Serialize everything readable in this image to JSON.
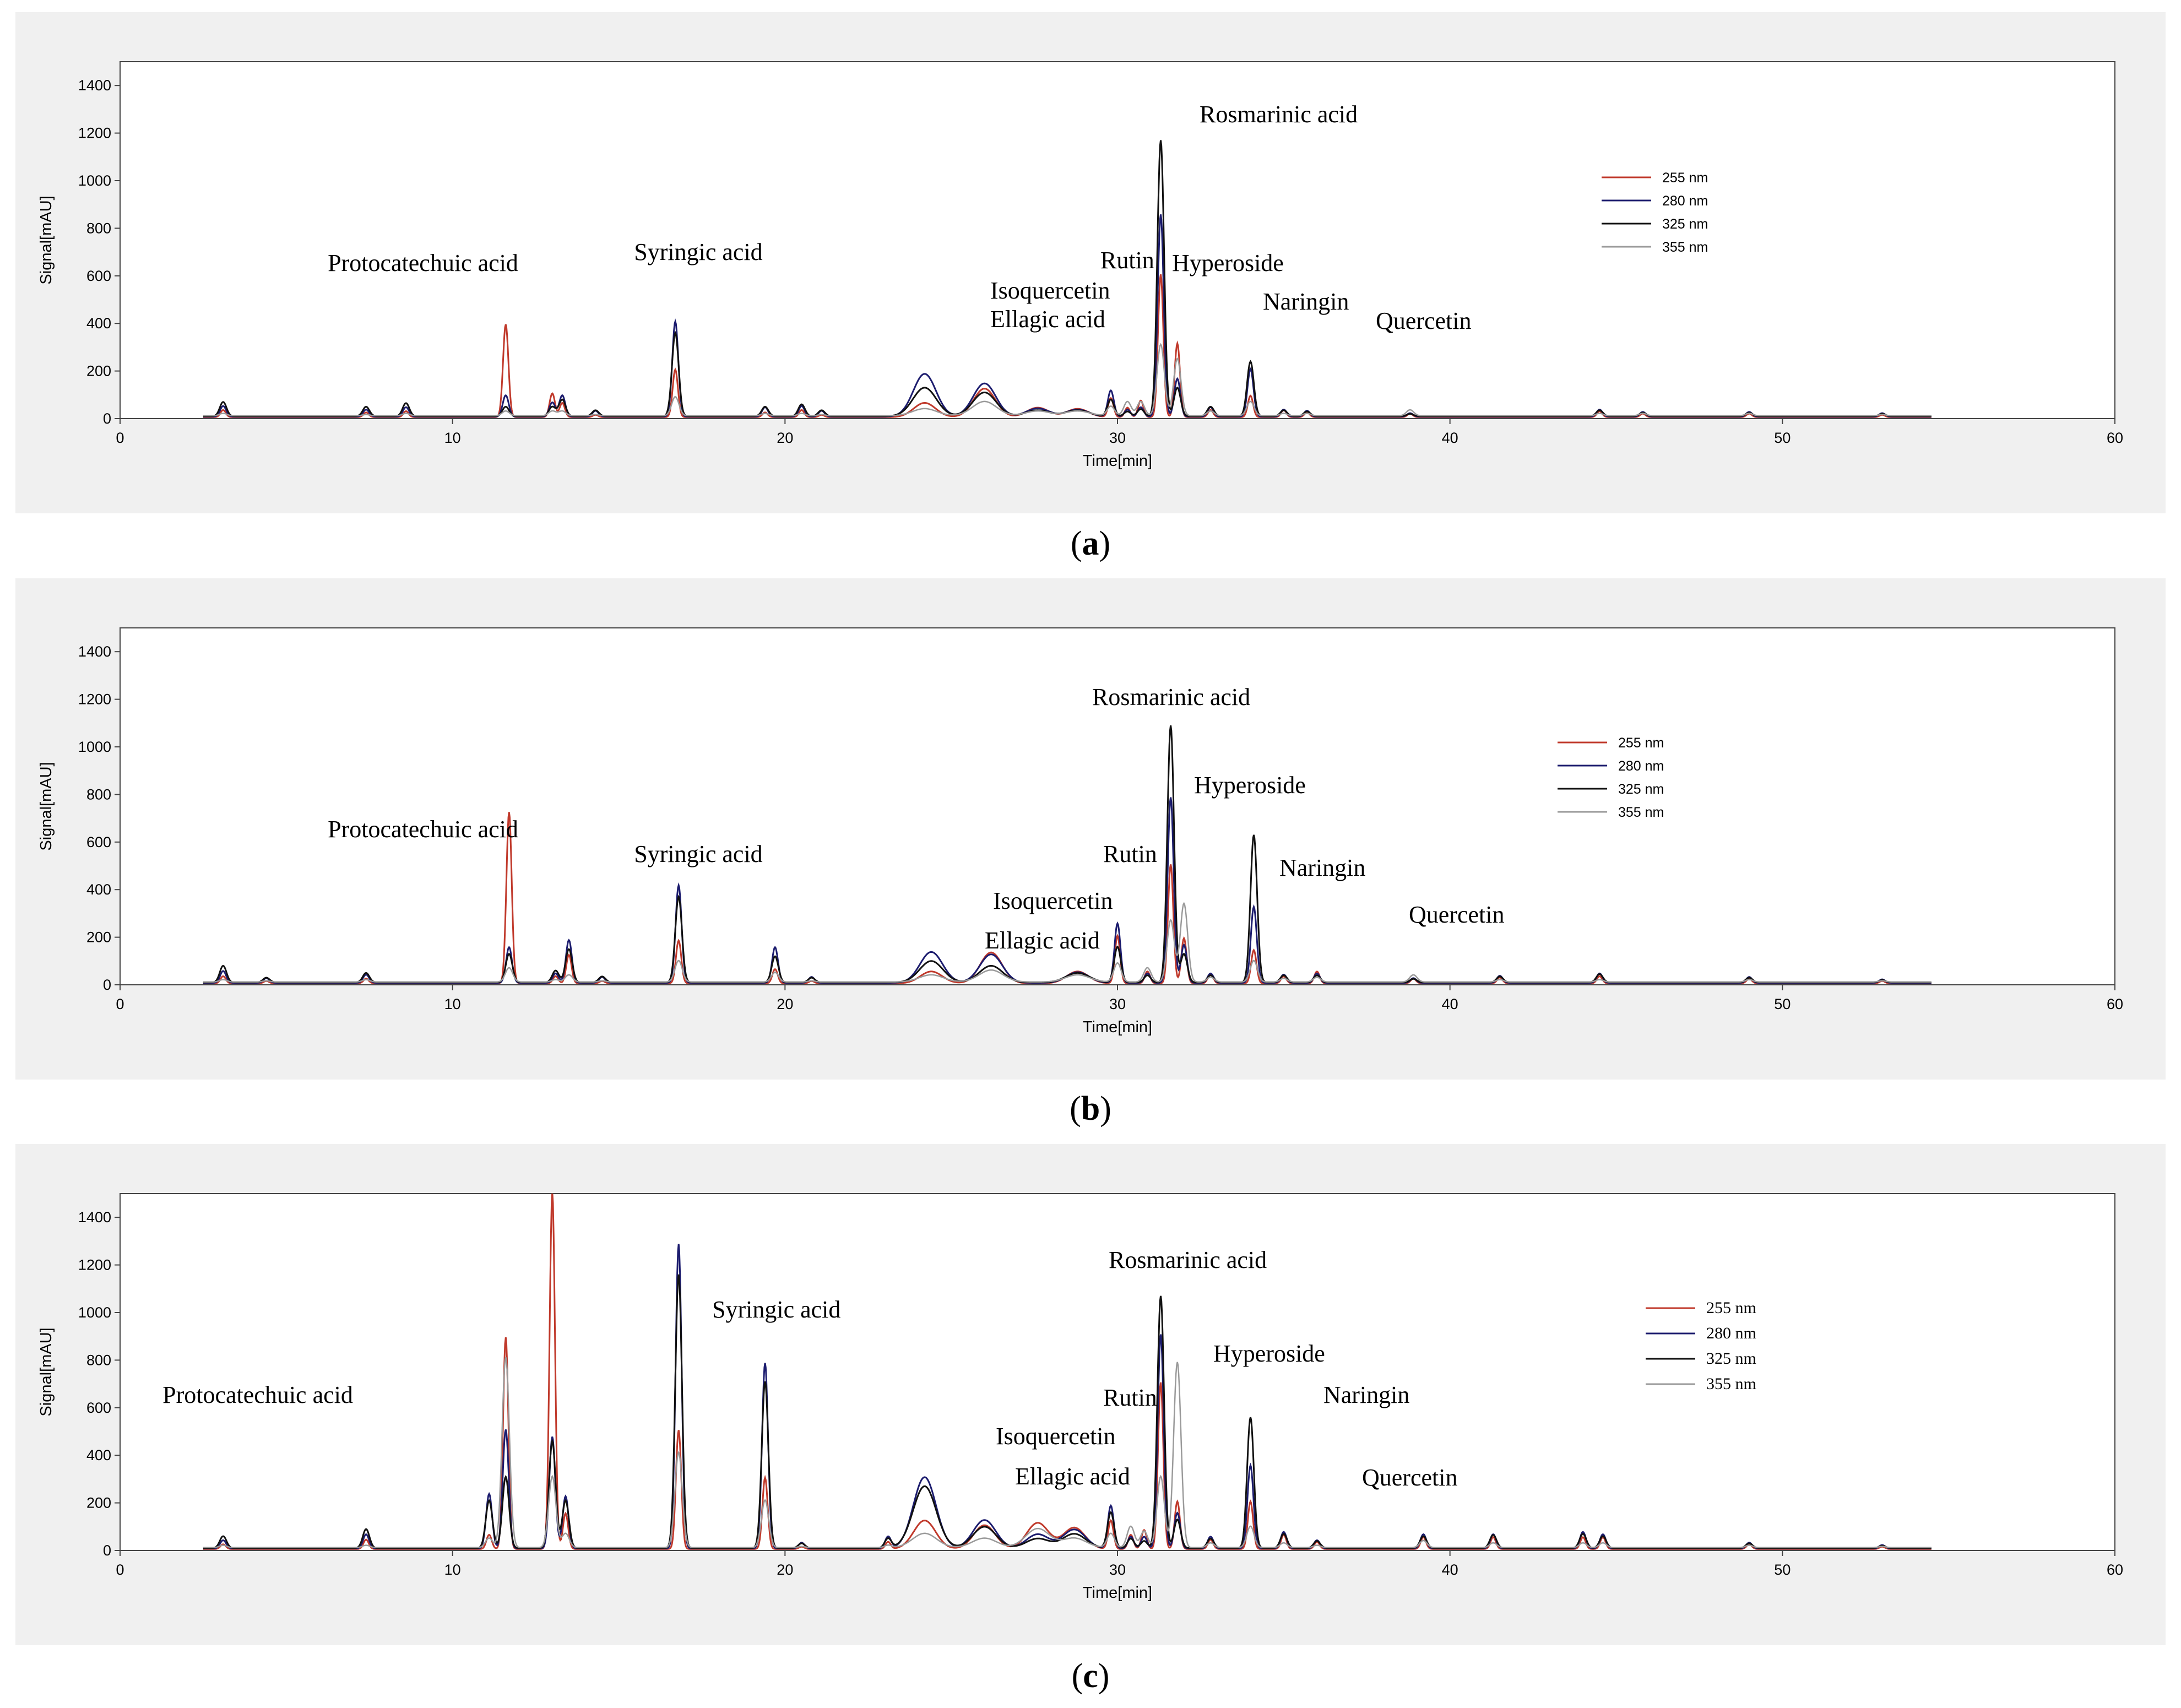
{
  "chart_data": [
    {
      "type": "line",
      "panel_label": "a",
      "xlabel": "Time[min]",
      "ylabel": "Signal[mAU]",
      "xlim": [
        0,
        60
      ],
      "ylim": [
        0,
        1500
      ],
      "xticks": [
        0,
        10,
        20,
        30,
        40,
        50,
        60
      ],
      "yticks": [
        0,
        200,
        400,
        600,
        800,
        1000,
        1200,
        1400
      ],
      "legend": {
        "position": "top-right",
        "entries": [
          "255 nm",
          "280 nm",
          "325 nm",
          "355 nm"
        ]
      },
      "colors": {
        "255 nm": "#c0392b",
        "280 nm": "#1c1c6e",
        "325 nm": "#111111",
        "355 nm": "#9a9a9a"
      },
      "annotations": [
        {
          "text": "Protocatechuic acid",
          "x": 11.6
        },
        {
          "text": "Syringic acid",
          "x": 16.7
        },
        {
          "text": "Isoquercetin",
          "x": 30.3
        },
        {
          "text": "Ellagic acid",
          "x": 29.8
        },
        {
          "text": "Rutin",
          "x": 30.7
        },
        {
          "text": "Hyperoside",
          "x": 31.8
        },
        {
          "text": "Rosmarinic acid",
          "x": 31.3
        },
        {
          "text": "Naringin",
          "x": 34.0
        },
        {
          "text": "Quercetin",
          "x": 38.8
        }
      ],
      "peaks": [
        {
          "x": 3.1,
          "values": [
            30,
            45,
            60,
            10
          ]
        },
        {
          "x": 7.4,
          "values": [
            20,
            30,
            40,
            5
          ]
        },
        {
          "x": 8.6,
          "values": [
            25,
            40,
            55,
            10
          ]
        },
        {
          "x": 11.6,
          "values": [
            390,
            90,
            40,
            20
          ]
        },
        {
          "x": 13.0,
          "values": [
            100,
            60,
            40,
            20
          ]
        },
        {
          "x": 13.3,
          "values": [
            60,
            90,
            70,
            20
          ]
        },
        {
          "x": 14.3,
          "values": [
            10,
            25,
            25,
            5
          ]
        },
        {
          "x": 16.7,
          "values": [
            200,
            400,
            350,
            80
          ]
        },
        {
          "x": 19.4,
          "values": [
            20,
            40,
            40,
            10
          ]
        },
        {
          "x": 20.5,
          "values": [
            30,
            45,
            50,
            10
          ]
        },
        {
          "x": 21.1,
          "values": [
            10,
            25,
            25,
            5
          ]
        },
        {
          "x": 24.2,
          "values": [
            60,
            180,
            120,
            30
          ]
        },
        {
          "x": 26.0,
          "values": [
            120,
            140,
            100,
            60
          ]
        },
        {
          "x": 27.6,
          "values": [
            40,
            35,
            25,
            20
          ]
        },
        {
          "x": 28.8,
          "values": [
            35,
            30,
            25,
            20
          ]
        },
        {
          "x": 29.8,
          "values": [
            80,
            110,
            70,
            40
          ]
        },
        {
          "x": 30.3,
          "values": [
            40,
            30,
            20,
            60
          ]
        },
        {
          "x": 30.7,
          "values": [
            70,
            40,
            30,
            60
          ]
        },
        {
          "x": 31.3,
          "values": [
            600,
            850,
            1160,
            300
          ]
        },
        {
          "x": 31.8,
          "values": [
            310,
            160,
            120,
            240
          ]
        },
        {
          "x": 32.8,
          "values": [
            30,
            40,
            40,
            20
          ]
        },
        {
          "x": 34.0,
          "values": [
            90,
            200,
            230,
            60
          ]
        },
        {
          "x": 35.0,
          "values": [
            30,
            30,
            25,
            10
          ]
        },
        {
          "x": 35.7,
          "values": [
            20,
            25,
            20,
            10
          ]
        },
        {
          "x": 38.8,
          "values": [
            15,
            15,
            10,
            25
          ]
        },
        {
          "x": 44.5,
          "values": [
            25,
            30,
            25,
            10
          ]
        },
        {
          "x": 45.8,
          "values": [
            15,
            20,
            15,
            10
          ]
        },
        {
          "x": 49.0,
          "values": [
            15,
            20,
            15,
            10
          ]
        },
        {
          "x": 53.0,
          "values": [
            10,
            15,
            10,
            5
          ]
        }
      ]
    },
    {
      "type": "line",
      "panel_label": "b",
      "xlabel": "Time[min]",
      "ylabel": "Signal[mAU]",
      "xlim": [
        0,
        60
      ],
      "ylim": [
        0,
        1500
      ],
      "xticks": [
        0,
        10,
        20,
        30,
        40,
        50,
        60
      ],
      "yticks": [
        0,
        200,
        400,
        600,
        800,
        1000,
        1200,
        1400
      ],
      "legend": {
        "position": "top-right",
        "entries": [
          "255 nm",
          "280 nm",
          "325 nm",
          "355 nm"
        ]
      },
      "colors": {
        "255 nm": "#c0392b",
        "280 nm": "#1c1c6e",
        "325 nm": "#111111",
        "355 nm": "#9a9a9a"
      },
      "annotations": [
        {
          "text": "Protocatechuic acid",
          "x": 11.7
        },
        {
          "text": "Syringic acid",
          "x": 16.8
        },
        {
          "text": "Isoquercetin",
          "x": 30.5
        },
        {
          "text": "Ellagic acid",
          "x": 30.0
        },
        {
          "text": "Rutin",
          "x": 30.9
        },
        {
          "text": "Rosmarinic acid",
          "x": 31.6
        },
        {
          "text": "Hyperoside",
          "x": 32.0
        },
        {
          "text": "Naringin",
          "x": 34.1
        },
        {
          "text": "Quercetin",
          "x": 38.9
        }
      ],
      "peaks": [
        {
          "x": 3.1,
          "values": [
            30,
            50,
            70,
            10
          ]
        },
        {
          "x": 4.4,
          "values": [
            10,
            20,
            20,
            5
          ]
        },
        {
          "x": 7.4,
          "values": [
            20,
            35,
            40,
            10
          ]
        },
        {
          "x": 11.7,
          "values": [
            720,
            150,
            120,
            60
          ]
        },
        {
          "x": 13.1,
          "values": [
            30,
            40,
            50,
            10
          ]
        },
        {
          "x": 13.5,
          "values": [
            120,
            180,
            140,
            30
          ]
        },
        {
          "x": 14.5,
          "values": [
            10,
            25,
            25,
            5
          ]
        },
        {
          "x": 16.8,
          "values": [
            180,
            410,
            360,
            90
          ]
        },
        {
          "x": 19.7,
          "values": [
            60,
            150,
            110,
            40
          ]
        },
        {
          "x": 20.8,
          "values": [
            10,
            25,
            20,
            5
          ]
        },
        {
          "x": 24.4,
          "values": [
            50,
            130,
            90,
            30
          ]
        },
        {
          "x": 26.2,
          "values": [
            130,
            120,
            70,
            50
          ]
        },
        {
          "x": 28.8,
          "values": [
            50,
            45,
            40,
            30
          ]
        },
        {
          "x": 30.0,
          "values": [
            200,
            250,
            150,
            80
          ]
        },
        {
          "x": 30.9,
          "values": [
            50,
            40,
            30,
            60
          ]
        },
        {
          "x": 31.6,
          "values": [
            500,
            780,
            1080,
            260
          ]
        },
        {
          "x": 32.0,
          "values": [
            190,
            160,
            120,
            330
          ]
        },
        {
          "x": 32.8,
          "values": [
            40,
            40,
            30,
            20
          ]
        },
        {
          "x": 34.1,
          "values": [
            140,
            320,
            620,
            90
          ]
        },
        {
          "x": 35.0,
          "values": [
            30,
            35,
            30,
            15
          ]
        },
        {
          "x": 36.0,
          "values": [
            50,
            40,
            30,
            20
          ]
        },
        {
          "x": 38.9,
          "values": [
            20,
            20,
            15,
            30
          ]
        },
        {
          "x": 41.5,
          "values": [
            25,
            30,
            25,
            10
          ]
        },
        {
          "x": 44.5,
          "values": [
            30,
            40,
            35,
            10
          ]
        },
        {
          "x": 49.0,
          "values": [
            20,
            25,
            20,
            10
          ]
        },
        {
          "x": 53.0,
          "values": [
            10,
            15,
            10,
            5
          ]
        }
      ]
    },
    {
      "type": "line",
      "panel_label": "c",
      "xlabel": "Time[min]",
      "ylabel": "Signal[mAU]",
      "xlim": [
        0,
        60
      ],
      "ylim": [
        0,
        1500
      ],
      "xticks": [
        0,
        10,
        20,
        30,
        40,
        50,
        60
      ],
      "yticks": [
        0,
        200,
        400,
        600,
        800,
        1000,
        1200,
        1400
      ],
      "legend": {
        "position": "top-right",
        "entries": [
          "255 nm",
          "280 nm",
          "325 nm",
          "355 nm"
        ]
      },
      "colors": {
        "255 nm": "#c0392b",
        "280 nm": "#1c1c6e",
        "325 nm": "#111111",
        "355 nm": "#9a9a9a"
      },
      "annotations": [
        {
          "text": "Protocatechuic acid",
          "x": 11.6
        },
        {
          "text": "Syringic acid",
          "x": 16.8
        },
        {
          "text": "Isoquercetin",
          "x": 30.4
        },
        {
          "text": "Ellagic acid",
          "x": 29.8
        },
        {
          "text": "Rutin",
          "x": 30.8
        },
        {
          "text": "Rosmarinic acid",
          "x": 31.3
        },
        {
          "text": "Hyperoside",
          "x": 31.8
        },
        {
          "text": "Naringin",
          "x": 34.0
        },
        {
          "text": "Quercetin",
          "x": 39.0
        }
      ],
      "peaks": [
        {
          "x": 3.1,
          "values": [
            20,
            35,
            50,
            10
          ]
        },
        {
          "x": 7.4,
          "values": [
            40,
            60,
            80,
            10
          ]
        },
        {
          "x": 11.1,
          "values": [
            60,
            230,
            200,
            40
          ]
        },
        {
          "x": 11.6,
          "values": [
            890,
            500,
            300,
            800
          ]
        },
        {
          "x": 13.0,
          "values": [
            1500,
            470,
            450,
            300
          ]
        },
        {
          "x": 13.4,
          "values": [
            150,
            220,
            200,
            60
          ]
        },
        {
          "x": 16.8,
          "values": [
            500,
            1280,
            1150,
            400
          ]
        },
        {
          "x": 19.4,
          "values": [
            300,
            780,
            700,
            200
          ]
        },
        {
          "x": 20.5,
          "values": [
            10,
            25,
            20,
            5
          ]
        },
        {
          "x": 23.1,
          "values": [
            30,
            50,
            40,
            10
          ]
        },
        {
          "x": 24.2,
          "values": [
            120,
            300,
            260,
            60
          ]
        },
        {
          "x": 26.0,
          "values": [
            100,
            120,
            90,
            40
          ]
        },
        {
          "x": 27.6,
          "values": [
            110,
            60,
            40,
            80
          ]
        },
        {
          "x": 28.7,
          "values": [
            90,
            80,
            60,
            40
          ]
        },
        {
          "x": 29.8,
          "values": [
            120,
            180,
            150,
            60
          ]
        },
        {
          "x": 30.4,
          "values": [
            60,
            50,
            40,
            90
          ]
        },
        {
          "x": 30.8,
          "values": [
            80,
            50,
            30,
            70
          ]
        },
        {
          "x": 31.3,
          "values": [
            700,
            900,
            1060,
            300
          ]
        },
        {
          "x": 31.8,
          "values": [
            200,
            150,
            120,
            780
          ]
        },
        {
          "x": 32.8,
          "values": [
            40,
            50,
            40,
            20
          ]
        },
        {
          "x": 34.0,
          "values": [
            200,
            350,
            550,
            90
          ]
        },
        {
          "x": 35.0,
          "values": [
            60,
            70,
            60,
            20
          ]
        },
        {
          "x": 36.0,
          "values": [
            30,
            35,
            30,
            10
          ]
        },
        {
          "x": 39.2,
          "values": [
            50,
            60,
            50,
            30
          ]
        },
        {
          "x": 41.3,
          "values": [
            50,
            60,
            55,
            20
          ]
        },
        {
          "x": 44.0,
          "values": [
            50,
            70,
            60,
            20
          ]
        },
        {
          "x": 44.6,
          "values": [
            50,
            60,
            50,
            20
          ]
        },
        {
          "x": 49.0,
          "values": [
            20,
            25,
            20,
            10
          ]
        },
        {
          "x": 53.0,
          "values": [
            10,
            15,
            10,
            5
          ]
        }
      ]
    }
  ],
  "captions": [
    "a",
    "b",
    "c"
  ]
}
